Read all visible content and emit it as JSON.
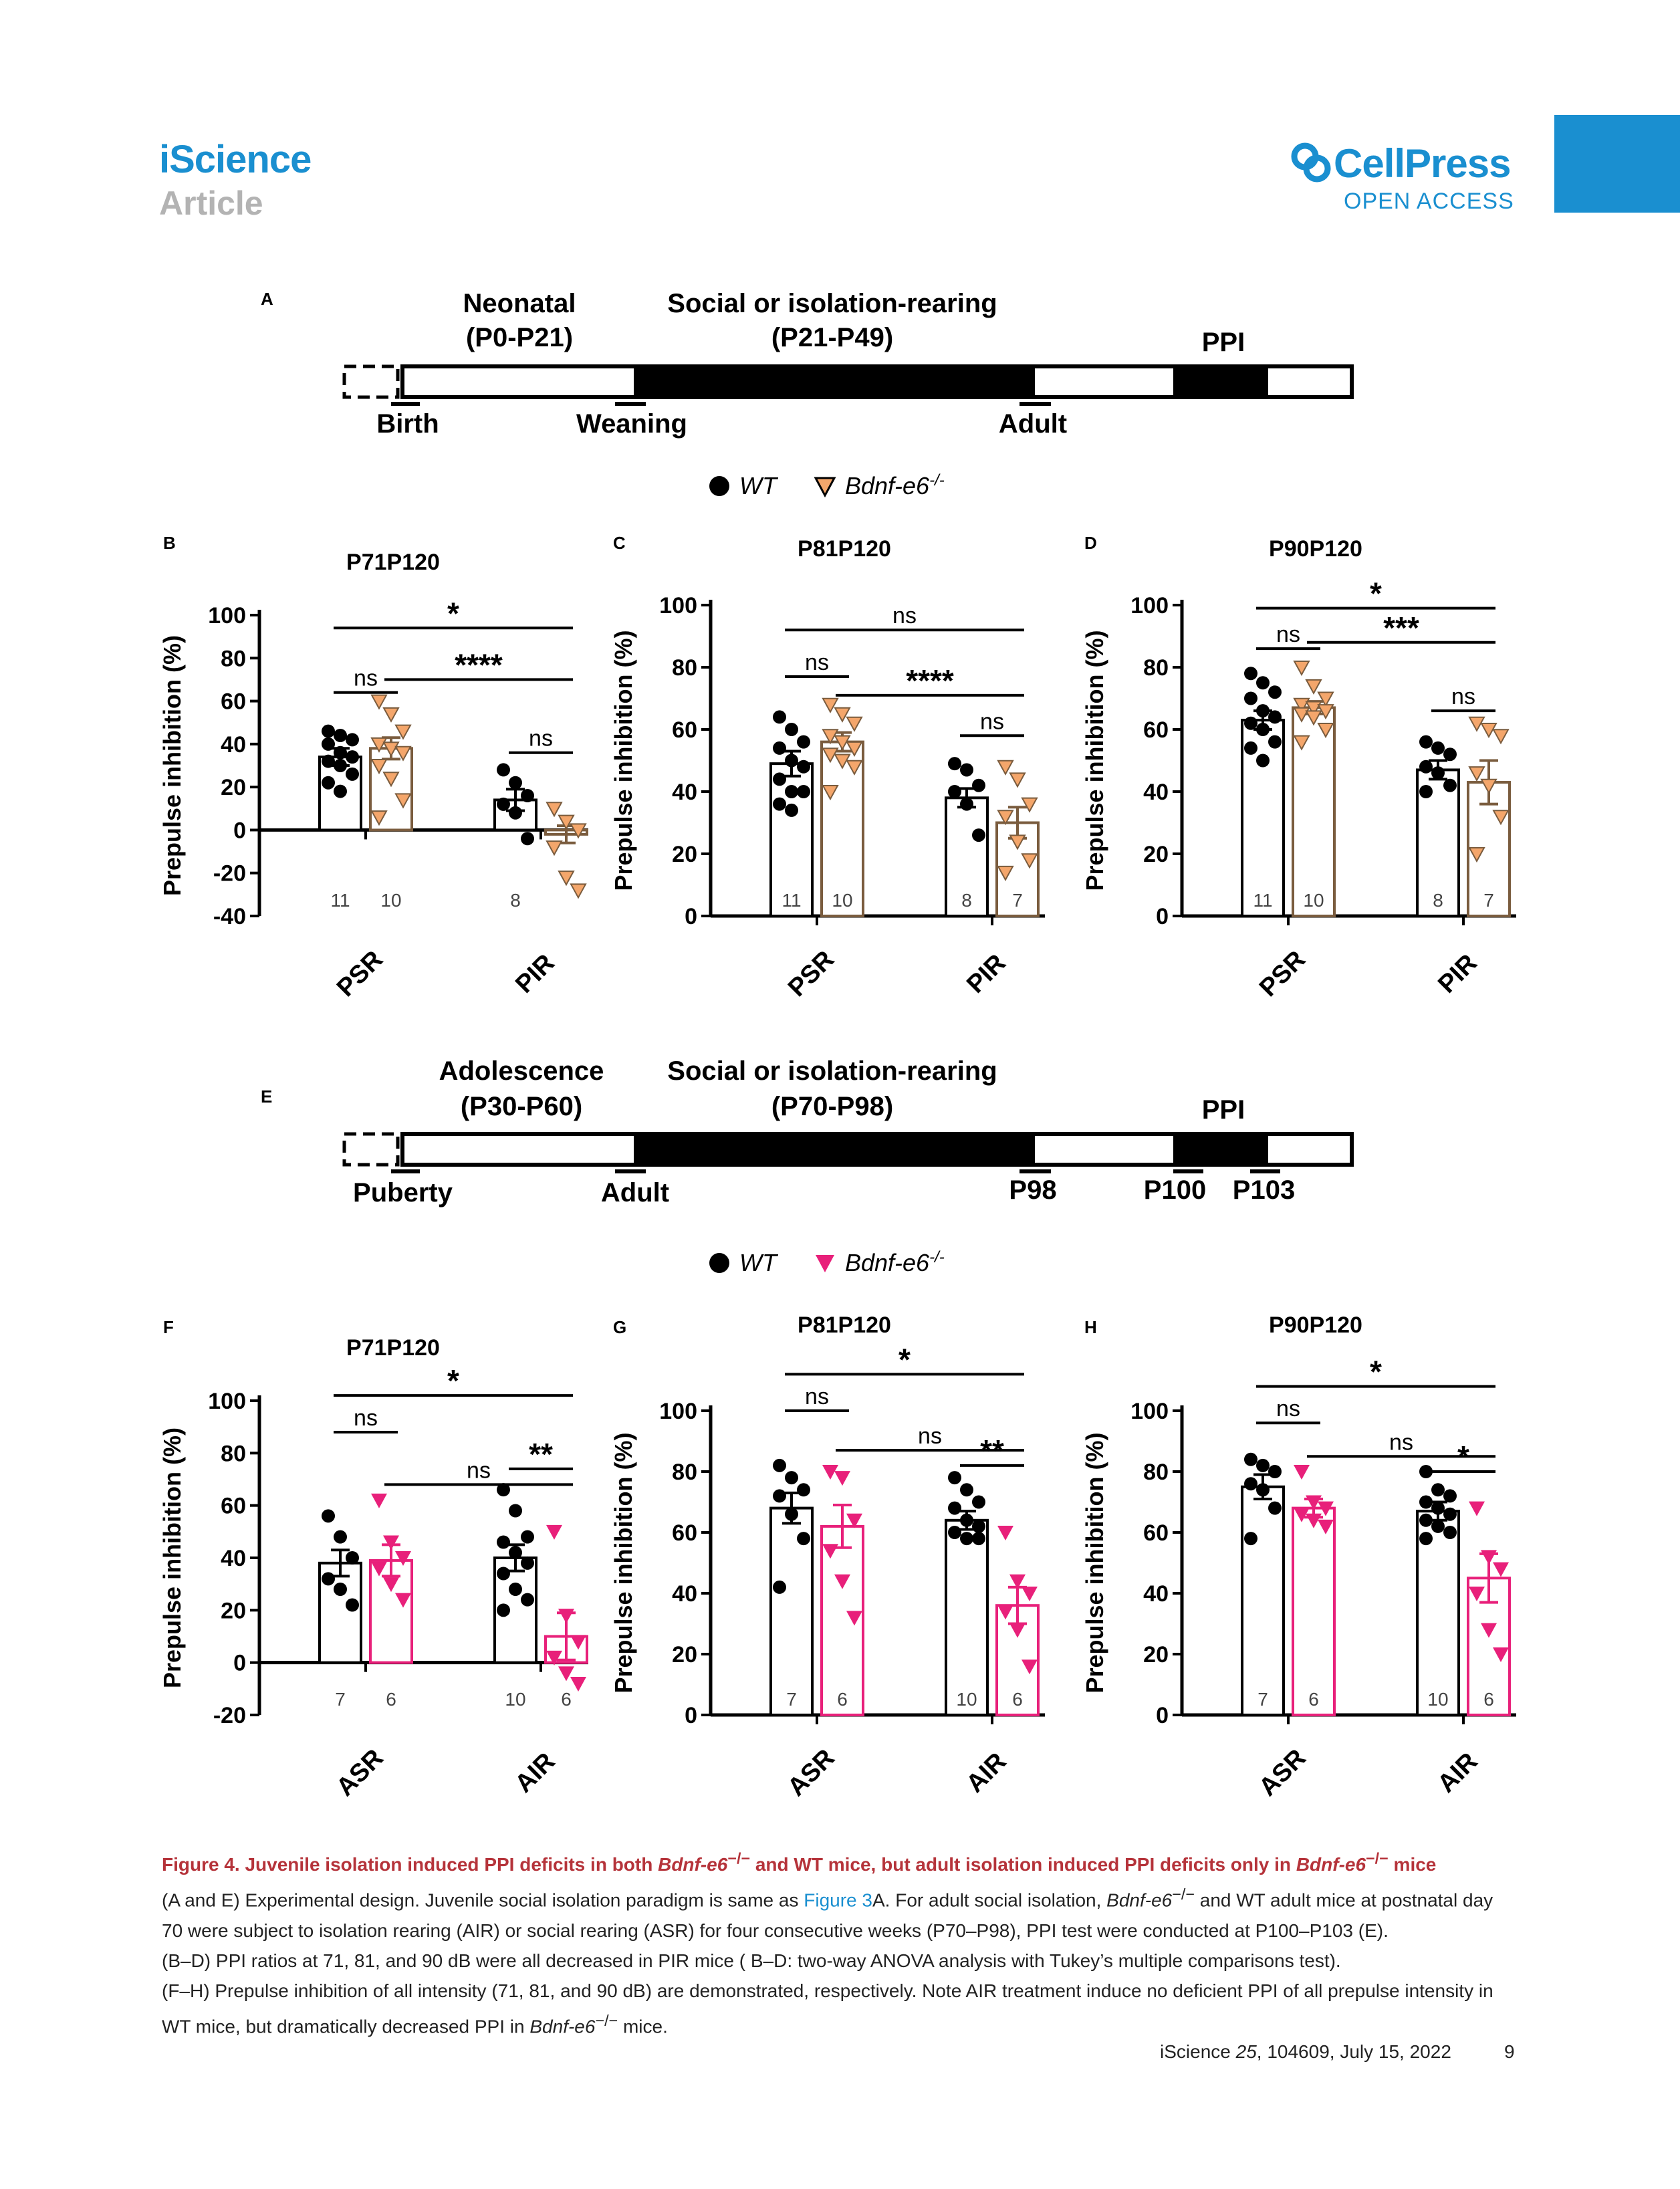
{
  "header": {
    "journal": "iScience",
    "section": "Article",
    "publisher": "CellPress",
    "access": "OPEN ACCESS"
  },
  "timelines": [
    {
      "panel": "A",
      "top_labels": [
        "Neonatal",
        "(P0-P21)",
        "Social or isolation-rearing",
        "(P21-P49)",
        "PPI"
      ],
      "bottom_labels": [
        "Birth",
        "Weaning",
        "Adult"
      ]
    },
    {
      "panel": "E",
      "top_labels": [
        "Adolescence",
        "(P30-P60)",
        "Social or isolation-rearing",
        "(P70-P98)",
        "PPI"
      ],
      "bottom_labels": [
        "Puberty",
        "Adult",
        "P98",
        "P100",
        "P103"
      ]
    }
  ],
  "legends": [
    {
      "wt": "WT",
      "ko": "Bdnf-e6",
      "ko_sup": "-/-",
      "ko_color": "#f4a66b"
    },
    {
      "wt": "WT",
      "ko": "Bdnf-e6",
      "ko_sup": "-/-",
      "ko_color": "#e8207a"
    }
  ],
  "chart_data": [
    {
      "panel": "B",
      "type": "bar",
      "title": "P71P120",
      "ylabel": "Prepulse inhibition (%)",
      "ylim": [
        -40,
        100
      ],
      "yticks": [
        -40,
        -20,
        0,
        20,
        40,
        60,
        80,
        100
      ],
      "categories": [
        "PSR",
        "PIR"
      ],
      "color": "#f4a66b",
      "shape": "tri-down-open",
      "series": [
        {
          "name": "WT",
          "values": [
            34,
            14
          ],
          "err": [
            4,
            5
          ],
          "n": [
            "11",
            "8"
          ]
        },
        {
          "name": "Bdnf-e6-/-",
          "values": [
            38,
            -2
          ],
          "err": [
            5,
            4
          ],
          "n": [
            "10",
            ""
          ]
        }
      ],
      "points": [
        [
          [
            46,
            44,
            42,
            40,
            36,
            34,
            32,
            30,
            26,
            22,
            18
          ],
          [
            28,
            22,
            16,
            12,
            8,
            -4
          ]
        ],
        [
          [
            60,
            54,
            46,
            40,
            38,
            36,
            30,
            24,
            14,
            6
          ],
          [
            10,
            4,
            0,
            -8,
            -22,
            -28
          ]
        ]
      ],
      "sig": [
        {
          "label": "*",
          "y": 94
        },
        {
          "label": "ns",
          "y": 64
        },
        {
          "label": "****",
          "y": 70
        },
        {
          "label": "ns",
          "y": 36
        }
      ]
    },
    {
      "panel": "C",
      "type": "bar",
      "title": "P81P120",
      "ylabel": "Prepulse inhibition (%)",
      "ylim": [
        0,
        100
      ],
      "yticks": [
        0,
        20,
        40,
        60,
        80,
        100
      ],
      "categories": [
        "PSR",
        "PIR"
      ],
      "color": "#f4a66b",
      "shape": "tri-down-open",
      "series": [
        {
          "name": "WT",
          "values": [
            49,
            38
          ],
          "err": [
            4,
            3
          ],
          "n": [
            "11",
            "8"
          ]
        },
        {
          "name": "Bdnf-e6-/-",
          "values": [
            56,
            30
          ],
          "err": [
            3,
            5
          ],
          "n": [
            "10",
            "7"
          ]
        }
      ],
      "points": [
        [
          [
            64,
            60,
            56,
            54,
            50,
            48,
            44,
            40,
            40,
            36,
            34
          ],
          [
            49,
            47,
            42,
            40,
            36,
            26
          ]
        ],
        [
          [
            68,
            65,
            62,
            58,
            56,
            54,
            52,
            50,
            48,
            40
          ],
          [
            48,
            44,
            36,
            32,
            24,
            18,
            14
          ]
        ]
      ],
      "sig": [
        {
          "label": "ns",
          "y": 92
        },
        {
          "label": "ns",
          "y": 77
        },
        {
          "label": "****",
          "y": 71
        },
        {
          "label": "ns",
          "y": 58
        }
      ]
    },
    {
      "panel": "D",
      "type": "bar",
      "title": "P90P120",
      "ylabel": "Prepulse inhibition (%)",
      "ylim": [
        0,
        100
      ],
      "yticks": [
        0,
        20,
        40,
        60,
        80,
        100
      ],
      "categories": [
        "PSR",
        "PIR"
      ],
      "color": "#f4a66b",
      "shape": "tri-down-open",
      "series": [
        {
          "name": "WT",
          "values": [
            63,
            47
          ],
          "err": [
            3,
            3
          ],
          "n": [
            "11",
            "8"
          ]
        },
        {
          "name": "Bdnf-e6-/-",
          "values": [
            67,
            43
          ],
          "err": [
            2,
            7
          ],
          "n": [
            "10",
            "7"
          ]
        }
      ],
      "points": [
        [
          [
            78,
            75,
            72,
            70,
            66,
            64,
            62,
            60,
            56,
            54,
            50
          ],
          [
            56,
            54,
            52,
            48,
            46,
            42,
            40
          ]
        ],
        [
          [
            80,
            74,
            70,
            68,
            67,
            66,
            65,
            64,
            60,
            56
          ],
          [
            62,
            60,
            58,
            46,
            42,
            32,
            20
          ]
        ]
      ],
      "sig": [
        {
          "label": "*",
          "y": 99
        },
        {
          "label": "ns",
          "y": 86
        },
        {
          "label": "***",
          "y": 88
        },
        {
          "label": "ns",
          "y": 66
        }
      ]
    },
    {
      "panel": "F",
      "type": "bar",
      "title": "P71P120",
      "ylabel": "Prepulse inhibition (%)",
      "ylim": [
        -20,
        100
      ],
      "yticks": [
        -20,
        0,
        20,
        40,
        60,
        80,
        100
      ],
      "categories": [
        "ASR",
        "AIR"
      ],
      "color": "#e8207a",
      "shape": "tri-down-filled",
      "series": [
        {
          "name": "WT",
          "values": [
            38,
            40
          ],
          "err": [
            5,
            5
          ],
          "n": [
            "7",
            "10"
          ]
        },
        {
          "name": "Bdnf-e6-/-",
          "values": [
            39,
            10
          ],
          "err": [
            6,
            9
          ],
          "n": [
            "6",
            "6"
          ]
        }
      ],
      "points": [
        [
          [
            56,
            48,
            40,
            32,
            28,
            22
          ],
          [
            66,
            58,
            48,
            46,
            42,
            38,
            34,
            28,
            24,
            20
          ]
        ],
        [
          [
            62,
            46,
            40,
            36,
            30,
            24
          ],
          [
            50,
            18,
            8,
            2,
            -4,
            -8
          ]
        ]
      ],
      "sig": [
        {
          "label": "*",
          "y": 102
        },
        {
          "label": "ns",
          "y": 88
        },
        {
          "label": "ns",
          "y": 68
        },
        {
          "label": "**",
          "y": 74
        }
      ]
    },
    {
      "panel": "G",
      "type": "bar",
      "title": "P81P120",
      "ylabel": "Prepulse inhibition (%)",
      "ylim": [
        0,
        100
      ],
      "yticks": [
        0,
        20,
        40,
        60,
        80,
        100
      ],
      "categories": [
        "ASR",
        "AIR"
      ],
      "color": "#e8207a",
      "shape": "tri-down-filled",
      "series": [
        {
          "name": "WT",
          "values": [
            68,
            64
          ],
          "err": [
            5,
            3
          ],
          "n": [
            "7",
            "10"
          ]
        },
        {
          "name": "Bdnf-e6-/-",
          "values": [
            62,
            36
          ],
          "err": [
            7,
            6
          ],
          "n": [
            "6",
            "6"
          ]
        }
      ],
      "points": [
        [
          [
            82,
            78,
            74,
            72,
            66,
            58,
            42
          ],
          [
            78,
            74,
            70,
            68,
            64,
            62,
            60,
            58,
            58
          ]
        ],
        [
          [
            80,
            78,
            64,
            54,
            44,
            32
          ],
          [
            60,
            44,
            40,
            34,
            28,
            16
          ]
        ]
      ],
      "sig": [
        {
          "label": "*",
          "y": 112
        },
        {
          "label": "ns",
          "y": 100
        },
        {
          "label": "ns",
          "y": 87
        },
        {
          "label": "**",
          "y": 82
        }
      ]
    },
    {
      "panel": "H",
      "type": "bar",
      "title": "P90P120",
      "ylabel": "Prepulse inhibition (%)",
      "ylim": [
        0,
        100
      ],
      "yticks": [
        0,
        20,
        40,
        60,
        80,
        100
      ],
      "categories": [
        "ASR",
        "AIR"
      ],
      "color": "#e8207a",
      "shape": "tri-down-filled",
      "series": [
        {
          "name": "WT",
          "values": [
            75,
            67
          ],
          "err": [
            4,
            3
          ],
          "n": [
            "7",
            "10"
          ]
        },
        {
          "name": "Bdnf-e6-/-",
          "values": [
            68,
            45
          ],
          "err": [
            3,
            8
          ],
          "n": [
            "6",
            "6"
          ]
        }
      ],
      "points": [
        [
          [
            84,
            82,
            80,
            76,
            74,
            68,
            58
          ],
          [
            80,
            74,
            72,
            70,
            68,
            66,
            64,
            62,
            60,
            58
          ]
        ],
        [
          [
            80,
            70,
            68,
            66,
            64,
            62
          ],
          [
            68,
            52,
            48,
            40,
            28,
            20
          ]
        ]
      ],
      "sig": [
        {
          "label": "*",
          "y": 108
        },
        {
          "label": "ns",
          "y": 96
        },
        {
          "label": "ns",
          "y": 85
        },
        {
          "label": "*",
          "y": 80
        }
      ]
    }
  ],
  "caption": {
    "title_prefix": "Figure 4.  Juvenile isolation induced PPI deficits in both ",
    "title_gene1": "Bdnf-e6",
    "title_mid": " and WT mice, but adult isolation induced PPI deficits only in ",
    "title_gene2": "Bdnf-e6",
    "title_end": " mice",
    "sup": "−/−",
    "line1_a": "(A and E) Experimental design. Juvenile social isolation paradigm is same as ",
    "line1_link": "Figure 3",
    "line1_b": "A. For adult social isolation, ",
    "line1_gene": "Bdnf-e6",
    "line1_c": " and WT adult mice at postnatal day 70 were subject to isolation rearing (AIR) or social rearing (ASR) for four consecutive weeks (P70–P98), PPI test were conducted at P100–P103 (E).",
    "line2": "(B–D) PPI ratios at 71, 81, and 90 dB were all decreased in PIR mice ( B–D: two-way ANOVA analysis with Tukey’s multiple comparisons test).",
    "line3_a": "(F–H) Prepulse inhibition of all intensity (71, 81, and 90 dB) are demonstrated, respectively. Note AIR treatment induce no deficient PPI of all prepulse intensity in WT mice, but dramatically decreased PPI in ",
    "line3_gene": "Bdnf-e6",
    "line3_b": " mice."
  },
  "footer": {
    "journal": "iScience ",
    "volume": "25",
    "rest": ", 104609, July 15, 2022",
    "page": "9"
  }
}
